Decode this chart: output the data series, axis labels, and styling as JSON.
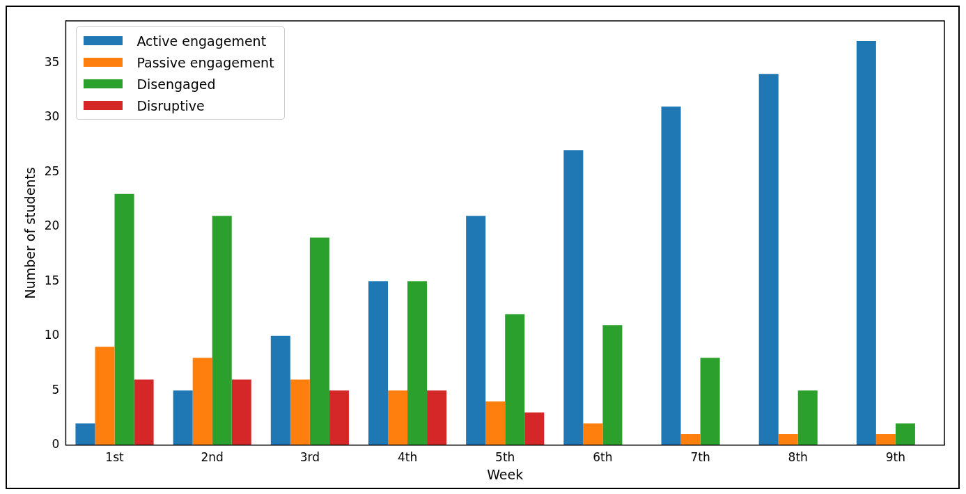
{
  "chart_data": {
    "type": "bar",
    "xlabel": "Week",
    "ylabel": "Number of students",
    "categories": [
      "1st",
      "2nd",
      "3rd",
      "4th",
      "5th",
      "6th",
      "7th",
      "8th",
      "9th"
    ],
    "series": [
      {
        "name": "Active engagement",
        "color": "#1f77b4",
        "values": [
          2,
          5,
          10,
          15,
          21,
          27,
          31,
          34,
          37
        ]
      },
      {
        "name": "Passive engagement",
        "color": "#ff7f0e",
        "values": [
          9,
          8,
          6,
          5,
          4,
          2,
          1,
          1,
          1
        ]
      },
      {
        "name": "Disengaged",
        "color": "#2ca02c",
        "values": [
          23,
          21,
          19,
          15,
          12,
          11,
          8,
          5,
          2
        ]
      },
      {
        "name": "Disruptive",
        "color": "#d62728",
        "values": [
          6,
          6,
          5,
          5,
          3,
          0,
          0,
          0,
          0
        ]
      }
    ],
    "ylim": [
      0,
      38.85
    ],
    "yticks": [
      0,
      5,
      10,
      15,
      20,
      25,
      30,
      35
    ],
    "grid": false,
    "legend": "top left"
  }
}
